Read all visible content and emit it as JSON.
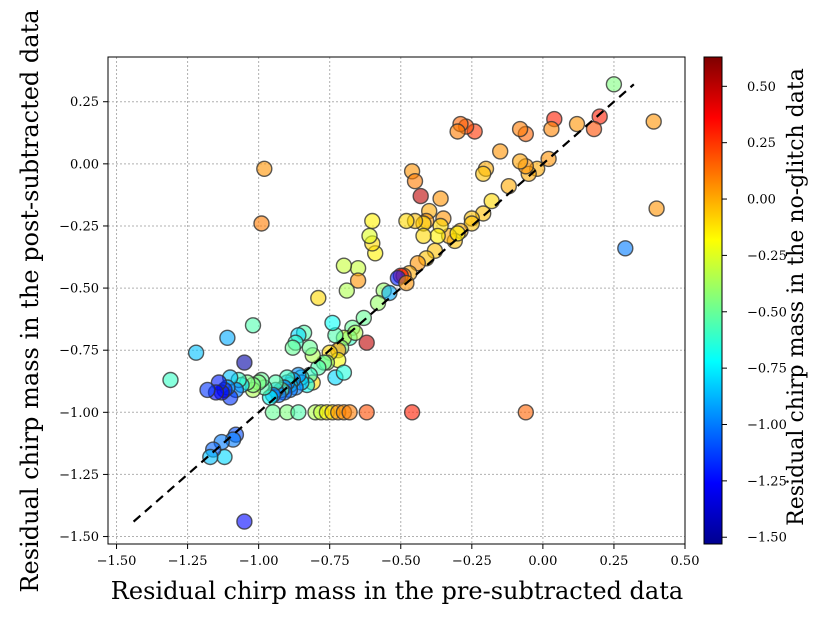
{
  "chart_data": {
    "type": "scatter",
    "xlabel": "Residual chirp mass in the pre-subtracted data",
    "ylabel": "Residual chirp mass in the post-subtracted data",
    "colorbar_label": "Residual chirp mass in the no-glitch data",
    "xlim": [
      -1.53,
      0.5
    ],
    "ylim": [
      -1.53,
      0.43
    ],
    "clim": [
      -1.53,
      0.63
    ],
    "grid": true,
    "x_ticks": [
      -1.5,
      -1.25,
      -1.0,
      -0.75,
      -0.5,
      -0.25,
      0.0,
      0.25,
      0.5
    ],
    "x_tick_labels": [
      "−1.50",
      "−1.25",
      "−1.00",
      "−0.75",
      "−0.50",
      "−0.25",
      "0.00",
      "0.25",
      "0.50"
    ],
    "y_ticks": [
      -1.5,
      -1.25,
      -1.0,
      -0.75,
      -0.5,
      -0.25,
      0.0,
      0.25
    ],
    "y_tick_labels": [
      "−1.50",
      "−1.25",
      "−1.00",
      "−0.75",
      "−0.50",
      "−0.25",
      "0.00",
      "0.25"
    ],
    "colorbar_ticks": [
      -1.5,
      -1.25,
      -1.0,
      -0.75,
      -0.5,
      -0.25,
      0.0,
      0.25,
      0.5
    ],
    "colorbar_tick_labels": [
      "−1.50",
      "−1.25",
      "−1.00",
      "−0.75",
      "−0.50",
      "−0.25",
      "0.00",
      "0.25",
      "0.50"
    ],
    "reference_line": {
      "style": "dashed",
      "x": [
        -1.44,
        0.32
      ],
      "y": [
        -1.44,
        0.32
      ]
    },
    "points": [
      [
        0.25,
        0.32,
        -0.45
      ],
      [
        0.39,
        0.17,
        0.05
      ],
      [
        0.4,
        -0.18,
        0.05
      ],
      [
        0.29,
        -0.34,
        -1.0
      ],
      [
        0.2,
        0.19,
        0.3
      ],
      [
        0.18,
        0.14,
        0.2
      ],
      [
        0.12,
        0.16,
        0.05
      ],
      [
        0.04,
        0.18,
        0.3
      ],
      [
        0.03,
        0.14,
        0.08
      ],
      [
        0.02,
        0.02,
        0.05
      ],
      [
        -0.02,
        -0.02,
        0.0
      ],
      [
        -0.06,
        0.12,
        0.15
      ],
      [
        -0.08,
        0.14,
        0.1
      ],
      [
        -0.05,
        -0.04,
        0.0
      ],
      [
        -0.06,
        -0.01,
        0.05
      ],
      [
        -0.08,
        0.01,
        0.02
      ],
      [
        -0.12,
        -0.09,
        0.0
      ],
      [
        -0.15,
        0.05,
        0.05
      ],
      [
        -0.18,
        -0.15,
        -0.1
      ],
      [
        -0.2,
        -0.02,
        0.0
      ],
      [
        -0.21,
        -0.04,
        -0.05
      ],
      [
        -0.21,
        -0.2,
        -0.05
      ],
      [
        -0.24,
        0.13,
        0.25
      ],
      [
        -0.25,
        -0.22,
        -0.05
      ],
      [
        -0.25,
        -0.24,
        -0.05
      ],
      [
        -0.27,
        0.15,
        0.2
      ],
      [
        -0.29,
        0.16,
        0.15
      ],
      [
        -0.3,
        0.13,
        0.1
      ],
      [
        -0.29,
        -0.27,
        0.0
      ],
      [
        -0.31,
        -0.31,
        -0.05
      ],
      [
        -0.33,
        -0.29,
        0.0
      ],
      [
        -0.35,
        -0.22,
        0.05
      ],
      [
        -0.36,
        -0.14,
        0.05
      ],
      [
        -0.36,
        -0.25,
        -0.1
      ],
      [
        -0.37,
        -0.29,
        -0.15
      ],
      [
        -0.38,
        -0.35,
        -0.05
      ],
      [
        -0.4,
        -0.19,
        0.0
      ],
      [
        -0.41,
        -0.23,
        0.05
      ],
      [
        -0.42,
        -0.24,
        -0.1
      ],
      [
        -0.42,
        -0.29,
        -0.1
      ],
      [
        -0.43,
        -0.13,
        0.5
      ],
      [
        -0.41,
        -0.38,
        -0.05
      ],
      [
        -0.44,
        -0.4,
        0.05
      ],
      [
        -0.46,
        -0.03,
        0.05
      ],
      [
        -0.45,
        -0.07,
        0.1
      ],
      [
        -0.45,
        -0.23,
        -0.05
      ],
      [
        -0.47,
        -0.44,
        0.0
      ],
      [
        -0.48,
        -0.23,
        -0.1
      ],
      [
        -0.49,
        -0.45,
        0.15
      ],
      [
        -0.5,
        -0.45,
        0.35
      ],
      [
        -0.51,
        -0.46,
        -1.2
      ],
      [
        -0.56,
        -0.51,
        -0.4
      ],
      [
        -0.58,
        -0.56,
        -0.4
      ],
      [
        -0.59,
        -0.36,
        -0.15
      ],
      [
        -0.6,
        -0.23,
        -0.15
      ],
      [
        -0.6,
        -0.32,
        -0.1
      ],
      [
        -0.61,
        -0.29,
        -0.25
      ],
      [
        -0.62,
        -0.72,
        0.5
      ],
      [
        -0.63,
        -0.62,
        -0.5
      ],
      [
        -0.65,
        -0.42,
        -0.3
      ],
      [
        -0.65,
        -0.47,
        0.05
      ],
      [
        -0.67,
        -0.66,
        -0.5
      ],
      [
        -0.68,
        -0.7,
        -0.6
      ],
      [
        -0.69,
        -0.51,
        -0.35
      ],
      [
        -0.7,
        -0.41,
        -0.3
      ],
      [
        -0.7,
        -0.7,
        -0.3
      ],
      [
        -0.71,
        -0.74,
        -0.45
      ],
      [
        -0.72,
        -0.75,
        0.05
      ],
      [
        -0.73,
        -0.69,
        -0.55
      ],
      [
        -0.74,
        -0.64,
        -0.7
      ],
      [
        -0.72,
        -0.79,
        -0.2
      ],
      [
        -0.75,
        -0.76,
        -0.1
      ],
      [
        -0.76,
        -0.8,
        -0.4
      ],
      [
        -0.77,
        -0.8,
        -0.5
      ],
      [
        -0.79,
        -0.54,
        -0.1
      ],
      [
        -0.79,
        -0.82,
        -0.55
      ],
      [
        -0.81,
        -0.77,
        -0.35
      ],
      [
        -0.81,
        -0.88,
        -0.1
      ],
      [
        -0.82,
        -0.74,
        -0.5
      ],
      [
        -0.82,
        -0.85,
        -0.6
      ],
      [
        -0.83,
        -0.89,
        -0.7
      ],
      [
        -0.84,
        -0.68,
        -0.55
      ],
      [
        -0.85,
        -0.86,
        -0.65
      ],
      [
        -0.85,
        -0.88,
        -0.85
      ],
      [
        -0.86,
        -0.69,
        -0.8
      ],
      [
        -0.86,
        -0.85,
        -0.95
      ],
      [
        -0.87,
        -0.72,
        -0.6
      ],
      [
        -0.87,
        -0.9,
        -1.0
      ],
      [
        -0.88,
        -0.74,
        -0.5
      ],
      [
        -0.88,
        -0.87,
        -0.9
      ],
      [
        -0.89,
        -0.89,
        -0.7
      ],
      [
        -0.89,
        -0.91,
        -1.0
      ],
      [
        -0.9,
        -0.88,
        -0.95
      ],
      [
        -0.9,
        -0.86,
        -0.6
      ],
      [
        -0.91,
        -0.9,
        -1.0
      ],
      [
        -0.91,
        -0.92,
        -1.05
      ],
      [
        -0.92,
        -0.91,
        -0.5
      ],
      [
        -0.93,
        -0.93,
        -1.05
      ],
      [
        -0.94,
        -0.91,
        -0.9
      ],
      [
        -0.94,
        -0.88,
        -0.55
      ],
      [
        -0.95,
        -0.93,
        -1.0
      ],
      [
        -0.96,
        -0.94,
        -0.7
      ],
      [
        -0.98,
        -0.02,
        0.05
      ],
      [
        -0.99,
        -0.24,
        0.1
      ],
      [
        -0.98,
        -0.9,
        -0.55
      ],
      [
        -0.99,
        -0.87,
        -0.5
      ],
      [
        -1.0,
        -0.88,
        -0.45
      ],
      [
        -1.02,
        -0.65,
        -0.55
      ],
      [
        -1.02,
        -0.91,
        -0.35
      ],
      [
        -1.02,
        -0.89,
        -0.45
      ],
      [
        -1.04,
        -0.88,
        -0.45
      ],
      [
        -1.05,
        -0.8,
        -1.45
      ],
      [
        -1.05,
        -1.44,
        -1.25
      ],
      [
        -1.06,
        -0.89,
        -0.8
      ],
      [
        -1.07,
        -0.87,
        -0.6
      ],
      [
        -1.08,
        -1.09,
        -1.1
      ],
      [
        -1.08,
        -0.91,
        -1.0
      ],
      [
        -1.09,
        -1.11,
        -1.0
      ],
      [
        -1.1,
        -0.94,
        -1.15
      ],
      [
        -1.1,
        -0.86,
        -0.85
      ],
      [
        -1.11,
        -0.7,
        -0.9
      ],
      [
        -1.11,
        -0.9,
        -0.95
      ],
      [
        -1.12,
        -0.91,
        -1.2
      ],
      [
        -1.12,
        -1.18,
        -0.8
      ],
      [
        -1.13,
        -0.92,
        -1.3
      ],
      [
        -1.13,
        -1.12,
        -1.0
      ],
      [
        -1.14,
        -0.88,
        -1.2
      ],
      [
        -1.15,
        -0.92,
        -1.25
      ],
      [
        -1.16,
        -1.15,
        -1.05
      ],
      [
        -1.17,
        -1.18,
        -0.85
      ],
      [
        -1.18,
        -0.91,
        -1.15
      ],
      [
        -1.22,
        -0.76,
        -0.85
      ],
      [
        -1.31,
        -0.87,
        -0.6
      ],
      [
        -0.95,
        -1.0,
        -0.5
      ],
      [
        -0.9,
        -1.0,
        -0.45
      ],
      [
        -0.86,
        -1.0,
        -0.55
      ],
      [
        -0.8,
        -1.0,
        -0.35
      ],
      [
        -0.78,
        -1.0,
        -0.3
      ],
      [
        -0.76,
        -1.0,
        -0.15
      ],
      [
        -0.74,
        -1.0,
        -0.1
      ],
      [
        -0.72,
        -1.0,
        0.05
      ],
      [
        -0.7,
        -1.0,
        0.05
      ],
      [
        -0.68,
        -1.0,
        0.1
      ],
      [
        -0.62,
        -1.0,
        0.2
      ],
      [
        -0.46,
        -1.0,
        0.3
      ],
      [
        -0.06,
        -1.0,
        0.15
      ],
      [
        -0.73,
        -0.86,
        -0.8
      ],
      [
        -0.7,
        -0.84,
        -0.65
      ],
      [
        -0.66,
        -0.68,
        -0.35
      ],
      [
        -0.54,
        -0.52,
        -0.9
      ],
      [
        -0.48,
        -0.48,
        0.05
      ],
      [
        -0.3,
        -0.28,
        -0.15
      ]
    ]
  }
}
